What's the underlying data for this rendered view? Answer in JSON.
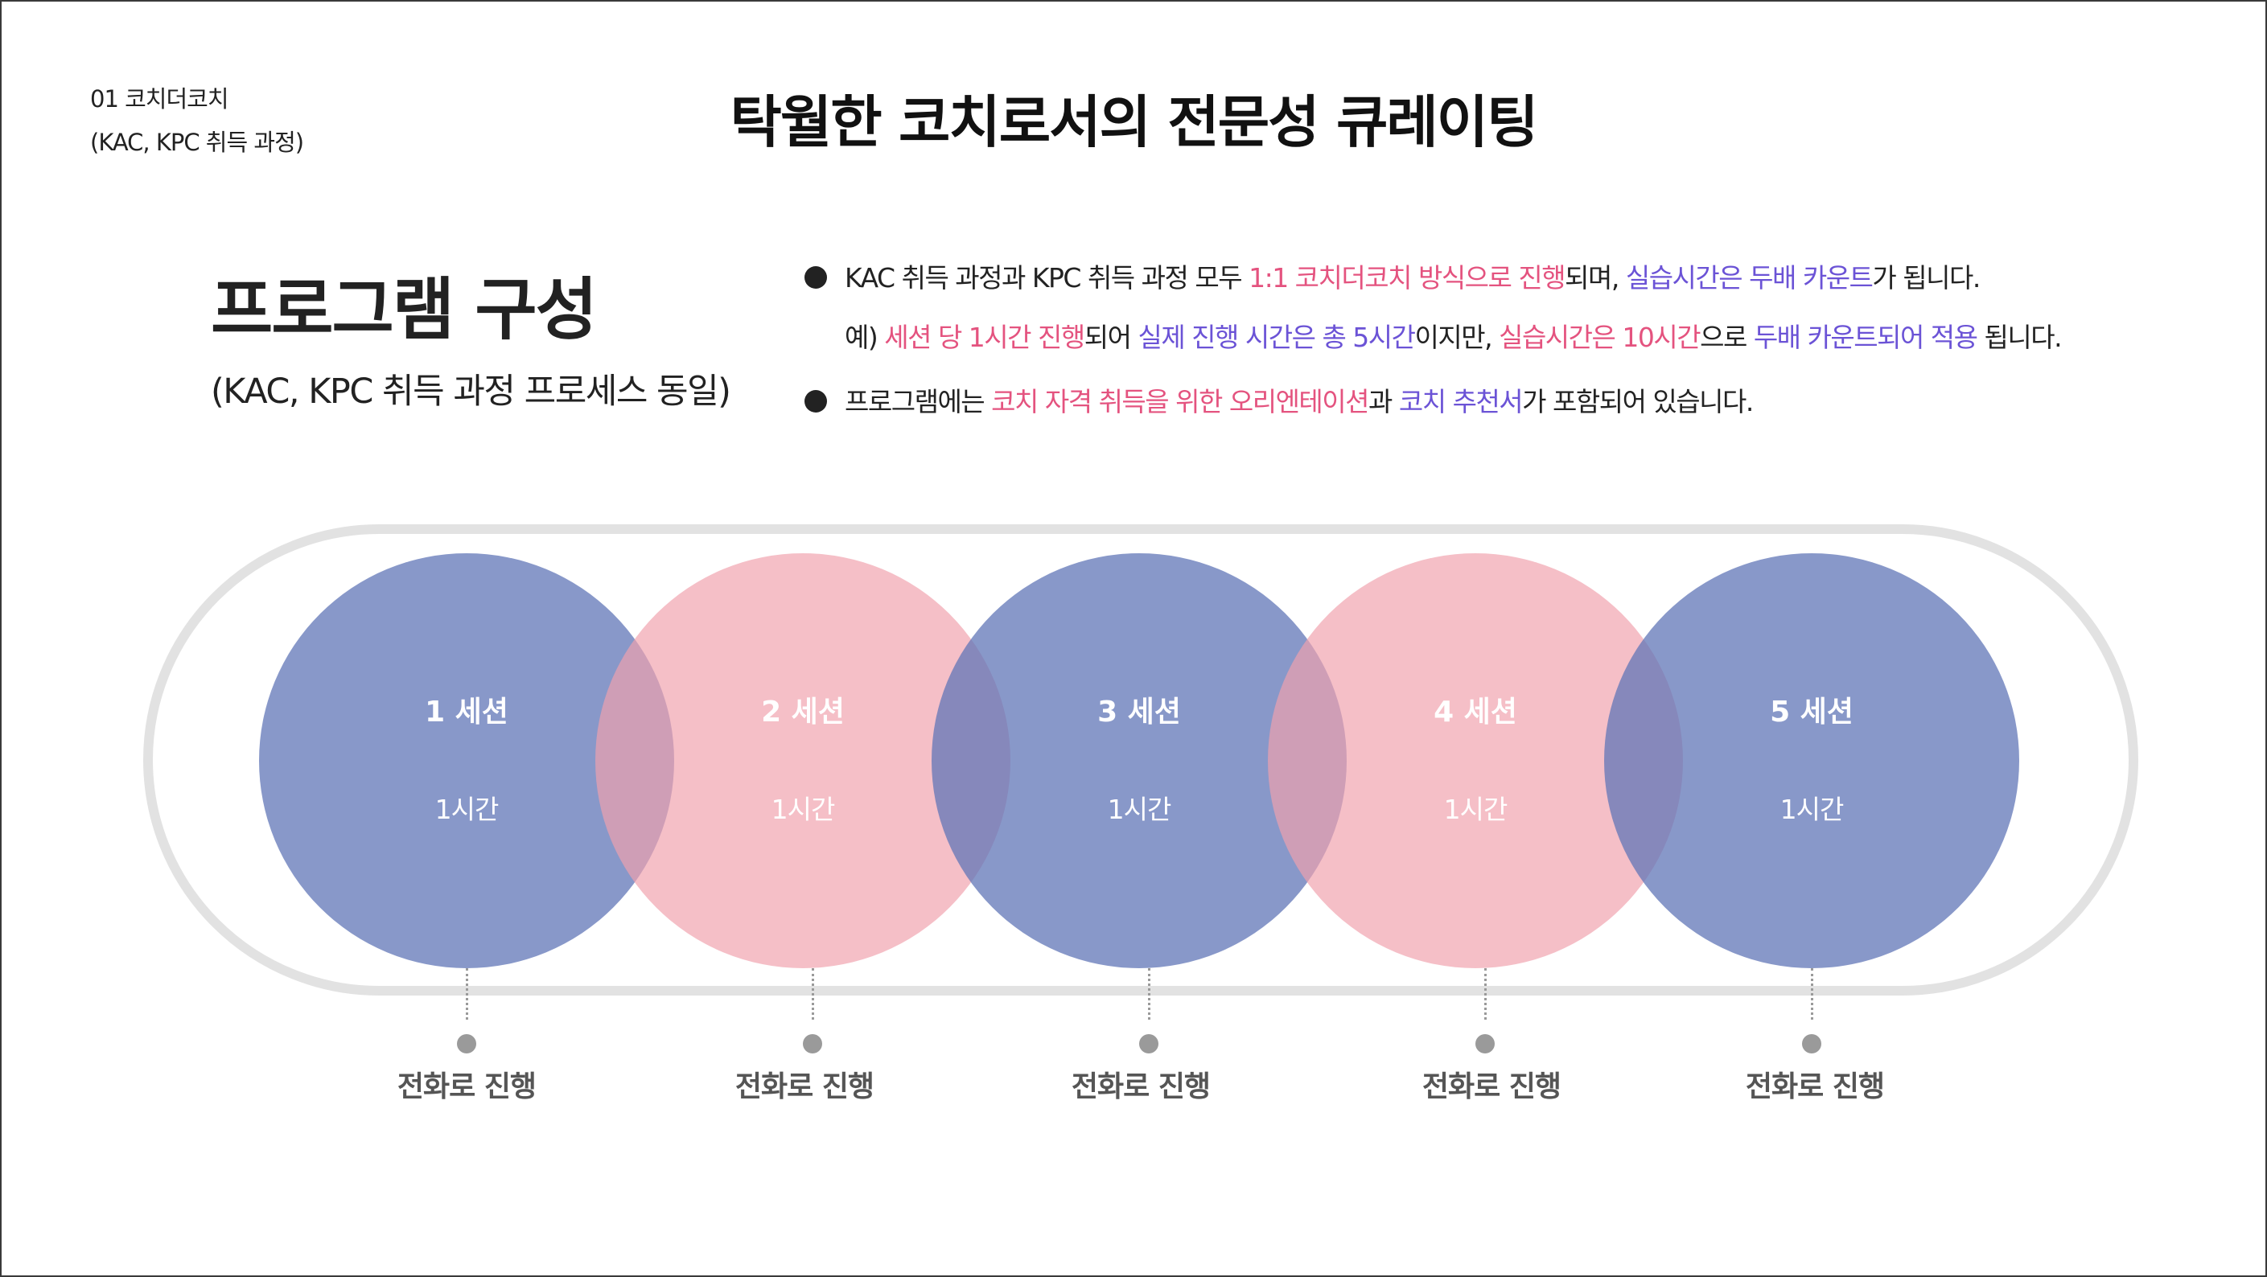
{
  "breadcrumb": {
    "line1": "01 코치더코치",
    "line2": "(KAC, KPC 취득 과정)"
  },
  "page_title": "탁월한 코치로서의 전문성 큐레이팅",
  "section": {
    "title": "프로그램 구성",
    "subtitle": "(KAC, KPC  취득 과정 프로세스 동일)"
  },
  "description": {
    "b1_a": "KAC 취득 과정과 KPC 취득 과정 모두 ",
    "b1_b": "1:1 코치더코치 방식으로 진행",
    "b1_c": "되며, ",
    "b1_d": "실습시간은 두배 카운트",
    "b1_e": "가 됩니다.",
    "ex_a": "예) ",
    "ex_b": "세션 당 1시간 진행",
    "ex_c": "되어  ",
    "ex_d": "실제 진행 시간은 총 5시간",
    "ex_e": "이지만, ",
    "ex_f": "실습시간은 10시간",
    "ex_g": "으로 ",
    "ex_h": "두배 카운트되어 적용",
    "ex_i": " 됩니다.",
    "b2_a": "프로그램에는 ",
    "b2_b": "코치 자격 취득을 위한 오리엔테이션",
    "b2_c": "과  ",
    "b2_d": "코치 추천서",
    "b2_e": "가 포함되어 있습니다."
  },
  "sessions": [
    {
      "title": "1 세션",
      "duration": "1시간",
      "method": "전화로 진행",
      "color": "blue"
    },
    {
      "title": "2 세션",
      "duration": "1시간",
      "method": "전화로 진행",
      "color": "pink"
    },
    {
      "title": "3 세션",
      "duration": "1시간",
      "method": "전화로 진행",
      "color": "blue"
    },
    {
      "title": "4 세션",
      "duration": "1시간",
      "method": "전화로 진행",
      "color": "pink"
    },
    {
      "title": "5 세션",
      "duration": "1시간",
      "method": "전화로 진행",
      "color": "blue"
    }
  ],
  "colors": {
    "accent_pink": "#e4537f",
    "accent_purple": "#6b53d6",
    "circle_blue": "#6076b7",
    "circle_pink": "#f0a0ac"
  }
}
